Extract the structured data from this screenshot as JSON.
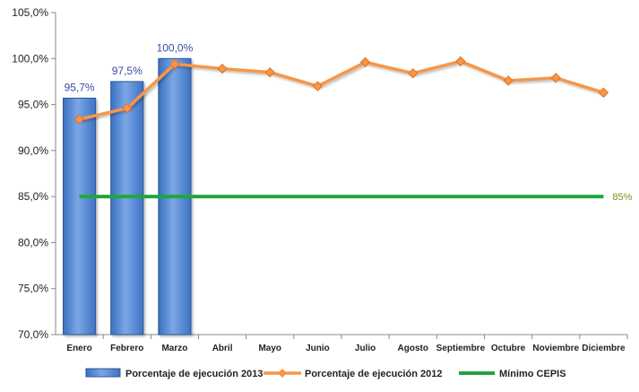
{
  "chart_data": {
    "type": "bar",
    "categories": [
      "Enero",
      "Febrero",
      "Marzo",
      "Abril",
      "Mayo",
      "Junio",
      "Julio",
      "Agosto",
      "Septiembre",
      "Octubre",
      "Noviembre",
      "Diciembre"
    ],
    "ylim": [
      70,
      105
    ],
    "yticks": [
      "70,0%",
      "75,0%",
      "80,0%",
      "85,0%",
      "90,0%",
      "95,0%",
      "100,0%",
      "105,0%"
    ],
    "series": [
      {
        "name": "Porcentaje de ejecución 2013",
        "type": "bar",
        "color": "#5b8fd6",
        "values": [
          95.7,
          97.5,
          100.0,
          null,
          null,
          null,
          null,
          null,
          null,
          null,
          null,
          null
        ],
        "labels": [
          "95,7%",
          "97,5%",
          "100,0%"
        ]
      },
      {
        "name": "Porcentaje de ejecución 2012",
        "type": "line",
        "color": "#f79646",
        "marker": "diamond",
        "values": [
          93.4,
          94.6,
          99.4,
          98.9,
          98.5,
          97.0,
          99.6,
          98.4,
          99.7,
          97.6,
          97.9,
          96.3
        ]
      },
      {
        "name": "Mínimo CEPIS",
        "type": "line",
        "color": "#1fa83a",
        "values": [
          85,
          85,
          85,
          85,
          85,
          85,
          85,
          85,
          85,
          85,
          85,
          85
        ],
        "end_label": "85%"
      }
    ],
    "grid": false,
    "legend": "bottom"
  }
}
